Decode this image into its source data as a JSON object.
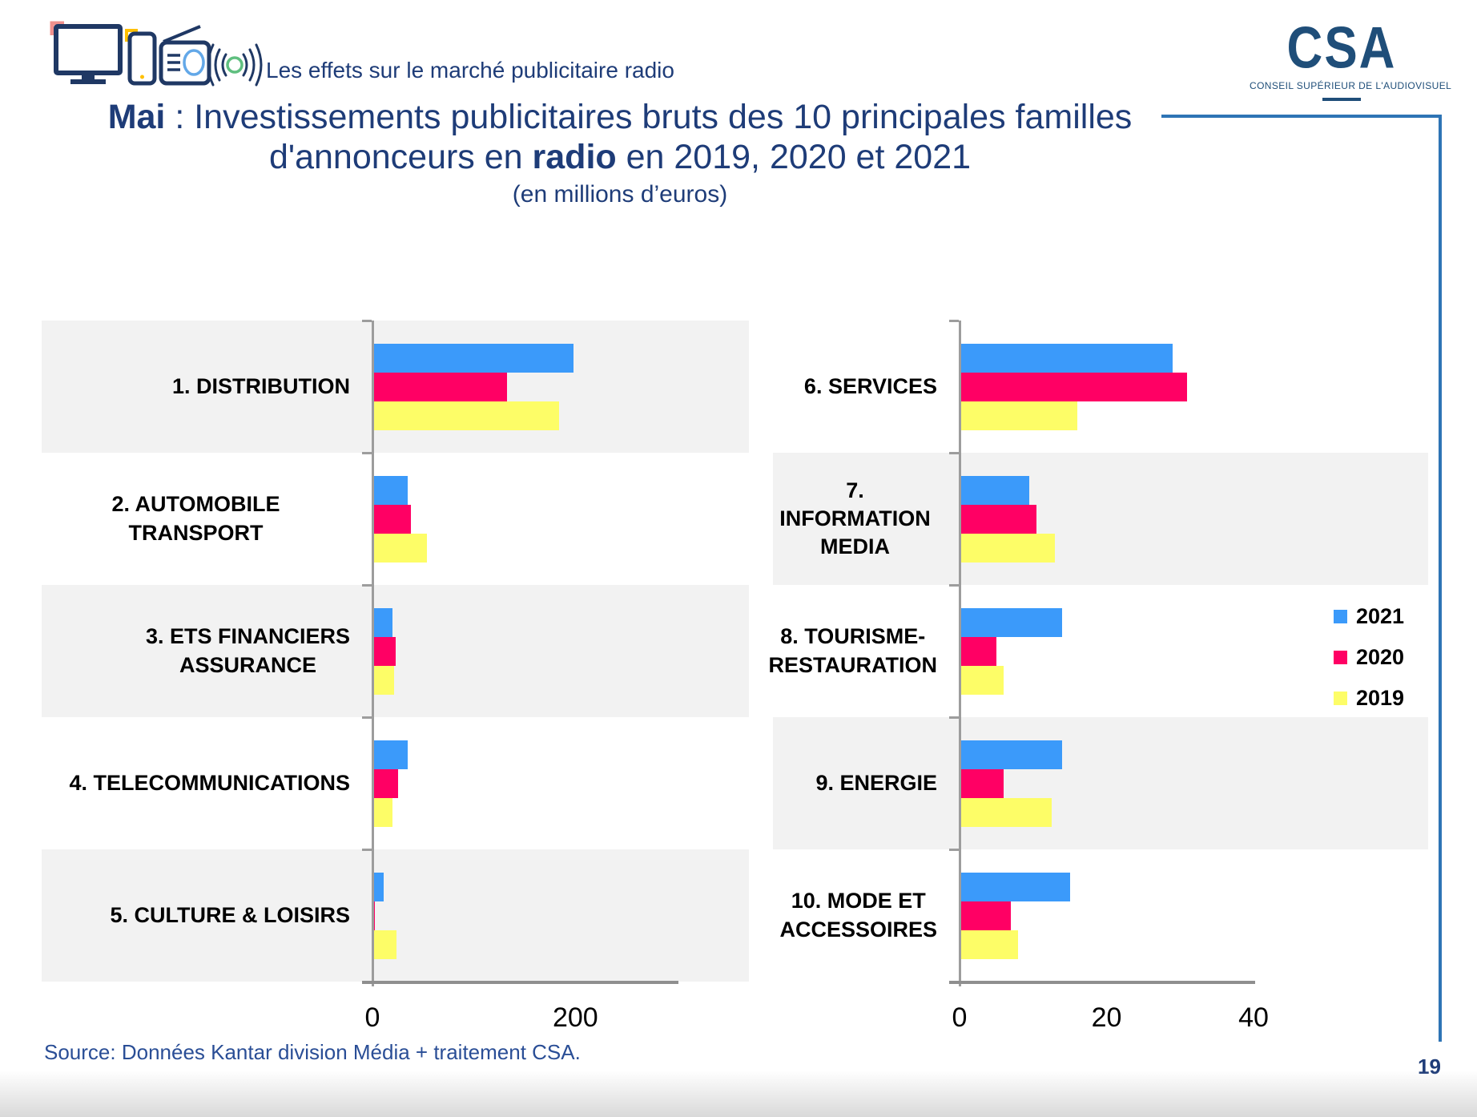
{
  "header": {
    "tagline": "Les effets sur le marché publicitaire radio",
    "logo_acronym": "CSA",
    "logo_name": "CONSEIL SUPÉRIEUR DE L'AUDIOVISUEL"
  },
  "title": {
    "bold1": "Mai",
    "line1_rest": " : Investissements publicitaires bruts des 10 principales familles",
    "line2_pre": "d'annonceurs en ",
    "line2_bold": "radio",
    "line2_post": " en 2019, 2020 et 2021",
    "subtitle": "(en millions d’euros)"
  },
  "legend": {
    "items": [
      {
        "label": "2021",
        "color": "#3b9afa"
      },
      {
        "label": "2020",
        "color": "#ff0064"
      },
      {
        "label": "2019",
        "color": "#fdfd67"
      }
    ]
  },
  "chart_data": [
    {
      "type": "bar",
      "orientation": "horizontal",
      "panel": "left",
      "categories": [
        "1. DISTRIBUTION",
        "2. AUTOMOBILE TRANSPORT",
        "3. ETS FINANCIERS\nASSURANCE",
        "4. TELECOMMUNICATIONS",
        "5. CULTURE & LOISIRS"
      ],
      "series": [
        {
          "name": "2021",
          "values": [
            198,
            35,
            20,
            35,
            11
          ]
        },
        {
          "name": "2020",
          "values": [
            133,
            38,
            23,
            25,
            2
          ]
        },
        {
          "name": "2019",
          "values": [
            184,
            54,
            21,
            20,
            24
          ]
        }
      ],
      "xticks": [
        0,
        200
      ],
      "xlim": [
        0,
        300
      ],
      "grid": false,
      "legend_position": "none"
    },
    {
      "type": "bar",
      "orientation": "horizontal",
      "panel": "right",
      "categories": [
        "6. SERVICES",
        "7. INFORMATION\nMEDIA",
        "8. TOURISME-\nRESTAURATION",
        "9. ENERGIE",
        "10. MODE ET\nACCESSOIRES"
      ],
      "series": [
        {
          "name": "2021",
          "values": [
            29,
            9.5,
            14,
            14,
            15
          ]
        },
        {
          "name": "2020",
          "values": [
            31,
            10.5,
            5,
            6,
            7
          ]
        },
        {
          "name": "2019",
          "values": [
            16,
            13,
            6,
            12.5,
            8
          ]
        }
      ],
      "xticks": [
        0,
        20,
        40
      ],
      "xlim": [
        0,
        40
      ],
      "grid": false,
      "legend_position": "right"
    }
  ],
  "footer": {
    "source": "Source: Données Kantar division Média + traitement CSA.",
    "page": "19"
  }
}
